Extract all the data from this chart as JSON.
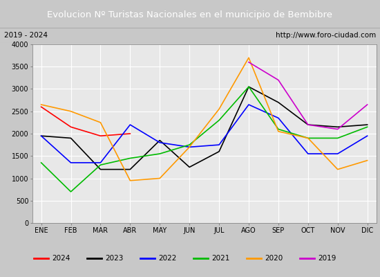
{
  "title": "Evolucion Nº Turistas Nacionales en el municipio de Bembibre",
  "subtitle_left": "2019 - 2024",
  "subtitle_right": "http://www.foro-ciudad.com",
  "months": [
    "ENE",
    "FEB",
    "MAR",
    "ABR",
    "MAY",
    "JUN",
    "JUL",
    "AGO",
    "SEP",
    "OCT",
    "NOV",
    "DIC"
  ],
  "ylim": [
    0,
    4000
  ],
  "yticks": [
    0,
    500,
    1000,
    1500,
    2000,
    2500,
    3000,
    3500,
    4000
  ],
  "series": {
    "2024": {
      "color": "#ff0000",
      "values": [
        2600,
        2150,
        1950,
        2000,
        null,
        null,
        null,
        null,
        null,
        null,
        null,
        null
      ]
    },
    "2023": {
      "color": "#000000",
      "values": [
        1950,
        1900,
        1200,
        1200,
        1850,
        1250,
        1600,
        3050,
        2700,
        2200,
        2150,
        2200
      ]
    },
    "2022": {
      "color": "#0000ff",
      "values": [
        1950,
        1350,
        1350,
        2200,
        1800,
        1700,
        1750,
        2650,
        2350,
        1550,
        1550,
        1950
      ]
    },
    "2021": {
      "color": "#00bb00",
      "values": [
        1350,
        700,
        1300,
        1450,
        1550,
        1750,
        2300,
        3050,
        2100,
        1900,
        1900,
        2150
      ]
    },
    "2020": {
      "color": "#ff9900",
      "values": [
        2650,
        2500,
        2250,
        950,
        1000,
        1700,
        2550,
        3700,
        2050,
        1900,
        1200,
        1400
      ]
    },
    "2019": {
      "color": "#cc00cc",
      "values": [
        null,
        null,
        null,
        null,
        null,
        null,
        null,
        3600,
        3200,
        2200,
        2100,
        2650
      ]
    }
  },
  "background_color": "#e8e8e8",
  "title_bg_color": "#4472c4",
  "title_color": "#ffffff",
  "grid_color": "#ffffff",
  "legend_order": [
    "2024",
    "2023",
    "2022",
    "2021",
    "2020",
    "2019"
  ],
  "outer_bg": "#c8c8c8"
}
